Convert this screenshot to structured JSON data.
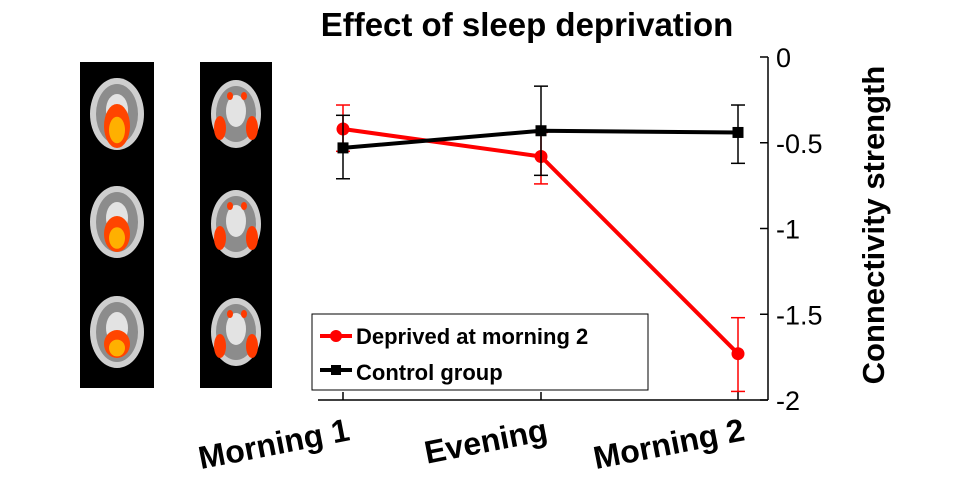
{
  "chart_data": {
    "type": "line",
    "title": "Effect of sleep deprivation",
    "xlabel": "",
    "ylabel": "Connectivity strength",
    "categories": [
      "Morning 1",
      "Evening",
      "Morning 2"
    ],
    "ylim": [
      -2,
      0
    ],
    "yticks": [
      0,
      -0.5,
      -1,
      -1.5,
      -2
    ],
    "ytick_labels": [
      "0",
      "-0.5",
      "-1",
      "-1.5",
      "-2"
    ],
    "y_axis_side": "right",
    "grid": false,
    "legend_placement": "bottom-left",
    "series": [
      {
        "name": "Deprived at morning 2",
        "color": "#ff0000",
        "marker": "circle",
        "values": [
          -0.42,
          -0.58,
          -1.73
        ],
        "err_low": [
          0.28,
          0.74,
          1.95
        ],
        "err_high": [
          0.55,
          0.44,
          1.52
        ],
        "err_range": [
          [
            -0.28,
            -0.55
          ],
          [
            -0.44,
            -0.74
          ],
          [
            -1.52,
            -1.95
          ]
        ]
      },
      {
        "name": "Control group",
        "color": "#000000",
        "marker": "square",
        "values": [
          -0.53,
          -0.43,
          -0.44
        ],
        "err_range": [
          [
            -0.34,
            -0.71
          ],
          [
            -0.17,
            -0.69
          ],
          [
            -0.28,
            -0.62
          ]
        ]
      }
    ]
  },
  "images": [
    {
      "name": "brain-scans-component-1",
      "color": "#ff6a00"
    },
    {
      "name": "brain-scans-component-2",
      "color": "#ff3a00"
    }
  ]
}
